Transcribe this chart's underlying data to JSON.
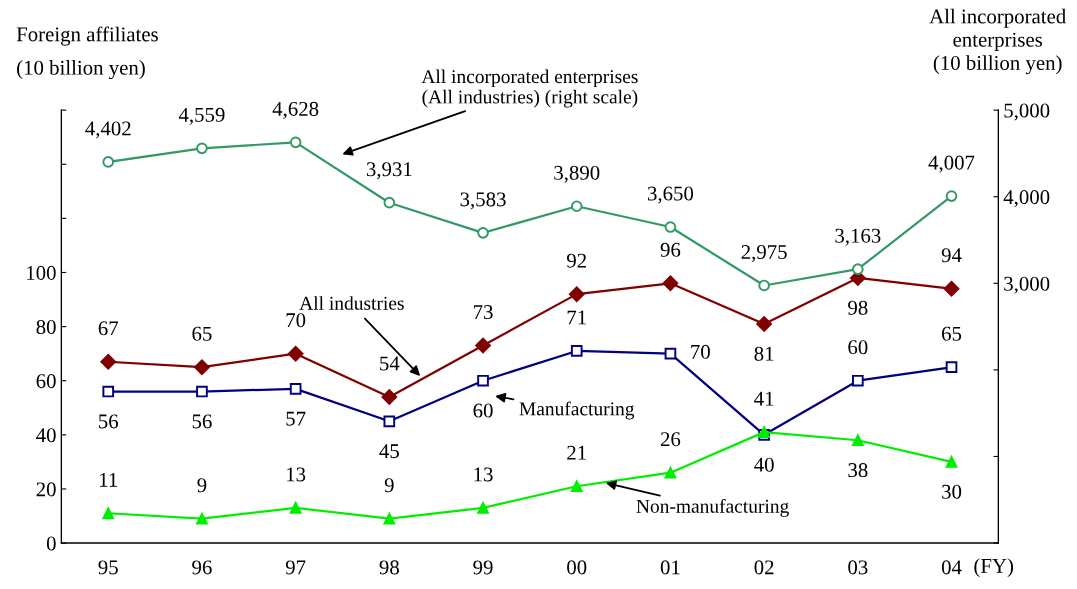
{
  "chart_data": {
    "type": "line",
    "categories": [
      "95",
      "96",
      "97",
      "98",
      "99",
      "00",
      "01",
      "02",
      "03",
      "04"
    ],
    "xlabel": "(FY)",
    "ylabel": "Foreign affiliates\n(10 billion yen)",
    "y2label": "All incorporated\nenterprises\n(10 billion yen)",
    "ylim": [
      0,
      160
    ],
    "yticks": [
      0,
      20,
      40,
      60,
      80,
      100,
      {
        "value": 120,
        "label": null
      },
      {
        "value": 140,
        "label": null
      },
      {
        "value": 160,
        "label": null
      }
    ],
    "y2lim": [
      0,
      5000
    ],
    "y2ticks": [
      {
        "value": 0,
        "label": null
      },
      {
        "value": 1000,
        "label": null
      },
      {
        "value": 2000,
        "label": null
      },
      {
        "value": 3000,
        "label": "3,000"
      },
      {
        "value": 4000,
        "label": "4,000"
      },
      {
        "value": 5000,
        "label": "5,000"
      }
    ],
    "grid": false,
    "legend": false,
    "series": [
      {
        "name": "All incorporated enterprises\n(All industries) (right scale)",
        "axis": "y2",
        "color": "#339966",
        "marker": "circle",
        "values": [
          4402,
          4559,
          4628,
          3931,
          3583,
          3890,
          3650,
          2975,
          3163,
          4007
        ],
        "value_labels": [
          "4,402",
          "4,559",
          "4,628",
          "3,931",
          "3,583",
          "3,890",
          "3,650",
          "2,975",
          "3,163",
          "4,007"
        ]
      },
      {
        "name": "All industries",
        "color": "#800000",
        "marker": "diamond",
        "values": [
          67,
          65,
          70,
          54,
          73,
          92,
          96,
          81,
          98,
          94
        ],
        "value_labels": [
          "67",
          "65",
          "70",
          "54",
          "73",
          "92",
          "96",
          "81",
          "98",
          "94"
        ]
      },
      {
        "name": "Manufacturing",
        "color": "#000080",
        "marker": "square",
        "values": [
          56,
          56,
          57,
          45,
          60,
          71,
          70,
          40,
          60,
          65
        ],
        "value_labels": [
          "56",
          "56",
          "57",
          "45",
          "60",
          "71",
          "70",
          "40",
          "60",
          "65"
        ]
      },
      {
        "name": "Non-manufacturing",
        "color": "#00ee00",
        "marker": "triangle",
        "values": [
          11,
          9,
          13,
          9,
          13,
          21,
          26,
          41,
          38,
          30
        ],
        "value_labels": [
          "11",
          "9",
          "13",
          "9",
          "13",
          "21",
          "26",
          "41",
          "38",
          "30"
        ]
      }
    ]
  }
}
